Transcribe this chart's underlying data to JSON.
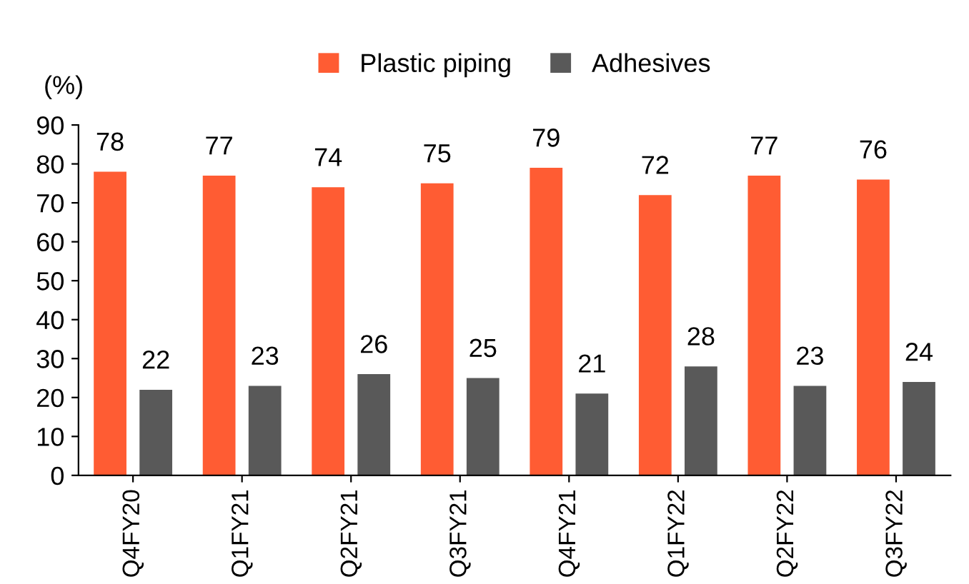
{
  "chart_data": {
    "type": "bar",
    "ylabel": "(%)",
    "categories": [
      "Q4FY20",
      "Q1FY21",
      "Q2FY21",
      "Q3FY21",
      "Q4FY21",
      "Q1FY22",
      "Q2FY22",
      "Q3FY22"
    ],
    "series": [
      {
        "name": "Plastic piping",
        "color": "#ff5c33",
        "values": [
          78,
          77,
          74,
          75,
          79,
          72,
          77,
          76
        ]
      },
      {
        "name": "Adhesives",
        "color": "#595959",
        "values": [
          22,
          23,
          26,
          25,
          21,
          28,
          23,
          24
        ]
      }
    ],
    "ylim": [
      0,
      90
    ],
    "yticks": [
      0,
      10,
      20,
      30,
      40,
      50,
      60,
      70,
      80,
      90
    ],
    "data_labels": true,
    "grid": false,
    "legend": "top"
  }
}
